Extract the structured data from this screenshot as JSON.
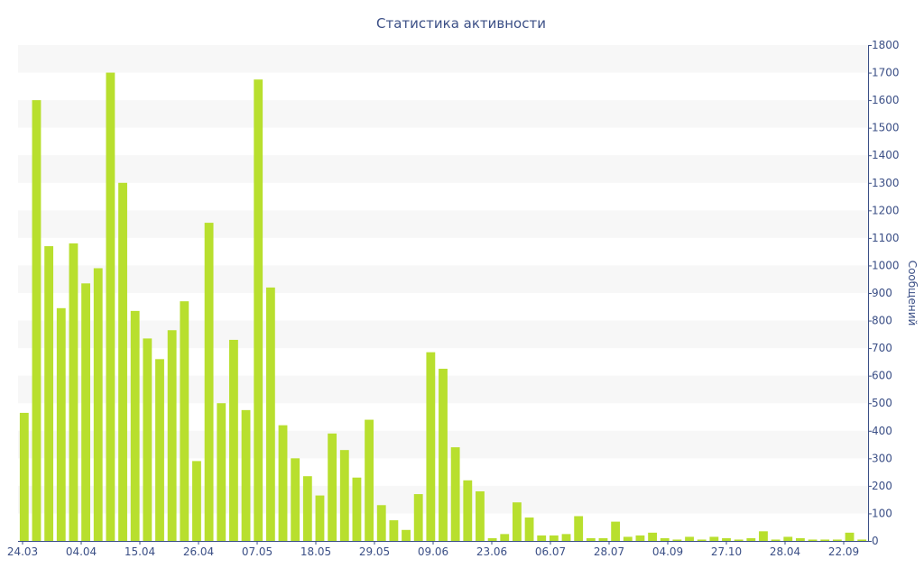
{
  "chart_data": {
    "type": "bar",
    "title": "Статистика активности",
    "xlabel": "",
    "ylabel": "Сообщений",
    "ylim": [
      0,
      1800
    ],
    "y_ticks": [
      0,
      100,
      200,
      300,
      400,
      500,
      600,
      700,
      800,
      900,
      1000,
      1100,
      1200,
      1300,
      1400,
      1500,
      1600,
      1700,
      1800
    ],
    "y_axis_side": "right",
    "x_tick_labels": [
      "24.03",
      "04.04",
      "15.04",
      "26.04",
      "07.05",
      "18.05",
      "29.05",
      "09.06",
      "23.06",
      "06.07",
      "28.07",
      "04.09",
      "27.10",
      "28.04",
      "22.09"
    ],
    "grid": "alternating horizontal bands",
    "bar_color": "#b8df2e",
    "band_color": "#f7f7f7",
    "text_color": "#3b4f86",
    "values": [
      465,
      1600,
      1070,
      845,
      1080,
      935,
      990,
      1700,
      1300,
      835,
      735,
      660,
      765,
      870,
      290,
      1155,
      500,
      730,
      475,
      1675,
      920,
      420,
      300,
      235,
      165,
      390,
      330,
      230,
      440,
      130,
      75,
      40,
      170,
      685,
      625,
      340,
      220,
      180,
      10,
      25,
      140,
      85,
      20,
      20,
      25,
      90,
      10,
      10,
      70,
      15,
      20,
      30,
      10,
      5,
      15,
      5,
      15,
      10,
      5,
      10,
      35,
      5,
      15,
      10,
      5,
      5,
      5,
      30,
      5
    ]
  }
}
